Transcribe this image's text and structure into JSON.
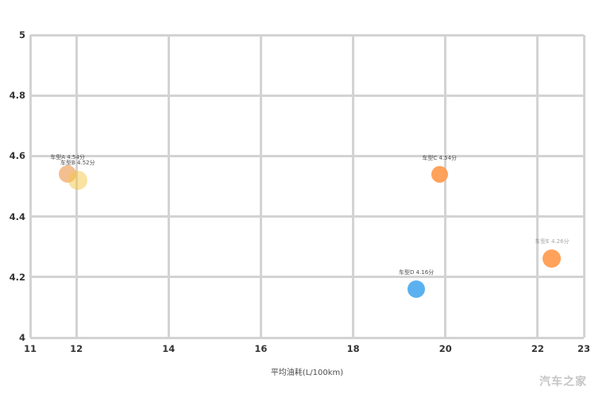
{
  "watermark": "汽车之家",
  "colors": {
    "background": "#ffffff",
    "grid": "#d3d3d3",
    "tick_label": "#333333",
    "axis_title": "#4d4d4d",
    "watermark": "#c5c5c5",
    "orange_light": "#ed9d55",
    "yellow": "#f5c544",
    "orange": "#ff9d52",
    "blue": "#4daaef"
  },
  "chart_data": {
    "type": "scatter",
    "title": "",
    "xlabel": "平均油耗(L/100km)",
    "ylabel": "",
    "xlim": [
      11,
      23
    ],
    "ylim": [
      4,
      5
    ],
    "grid": true,
    "legend_position": "none",
    "x_ticks": [
      {
        "value": 11,
        "label": "11"
      },
      {
        "value": 12,
        "label": "12"
      },
      {
        "value": 14,
        "label": "14"
      },
      {
        "value": 16,
        "label": "16"
      },
      {
        "value": 18,
        "label": "18"
      },
      {
        "value": 20,
        "label": "20"
      },
      {
        "value": 22,
        "label": "22"
      },
      {
        "value": 23,
        "label": "23"
      }
    ],
    "y_ticks": [
      {
        "value": 5,
        "label": "5"
      },
      {
        "value": 4.8,
        "label": "4.8"
      },
      {
        "value": 4.6,
        "label": "4.6"
      },
      {
        "value": 4.4,
        "label": "4.4"
      },
      {
        "value": 4.2,
        "label": "4.2"
      },
      {
        "value": 4,
        "label": "4"
      }
    ],
    "points": [
      {
        "label": "车型A 4.54分",
        "x": 11.81,
        "y": 4.54,
        "radius": 11,
        "color": "#ed9d55",
        "opacity": 0.65,
        "label_opacity": 0.9
      },
      {
        "label": "车型B 4.52分",
        "x": 12.03,
        "y": 4.52,
        "radius": 12,
        "color": "#f5c544",
        "opacity": 0.5,
        "label_opacity": 0.9
      },
      {
        "label": "车型C 4.54分",
        "x": 19.87,
        "y": 4.54,
        "radius": 10.5,
        "color": "#ff9d52",
        "opacity": 0.95,
        "label_opacity": 0.9
      },
      {
        "label": "车型D 4.16分",
        "x": 19.37,
        "y": 4.16,
        "radius": 11,
        "color": "#4daaef",
        "opacity": 0.92,
        "label_opacity": 0.9
      },
      {
        "label": "车型E 4.26分",
        "x": 22.31,
        "y": 4.26,
        "radius": 11.5,
        "color": "#ff9d52",
        "opacity": 0.95,
        "label_opacity": 0.45
      }
    ]
  }
}
